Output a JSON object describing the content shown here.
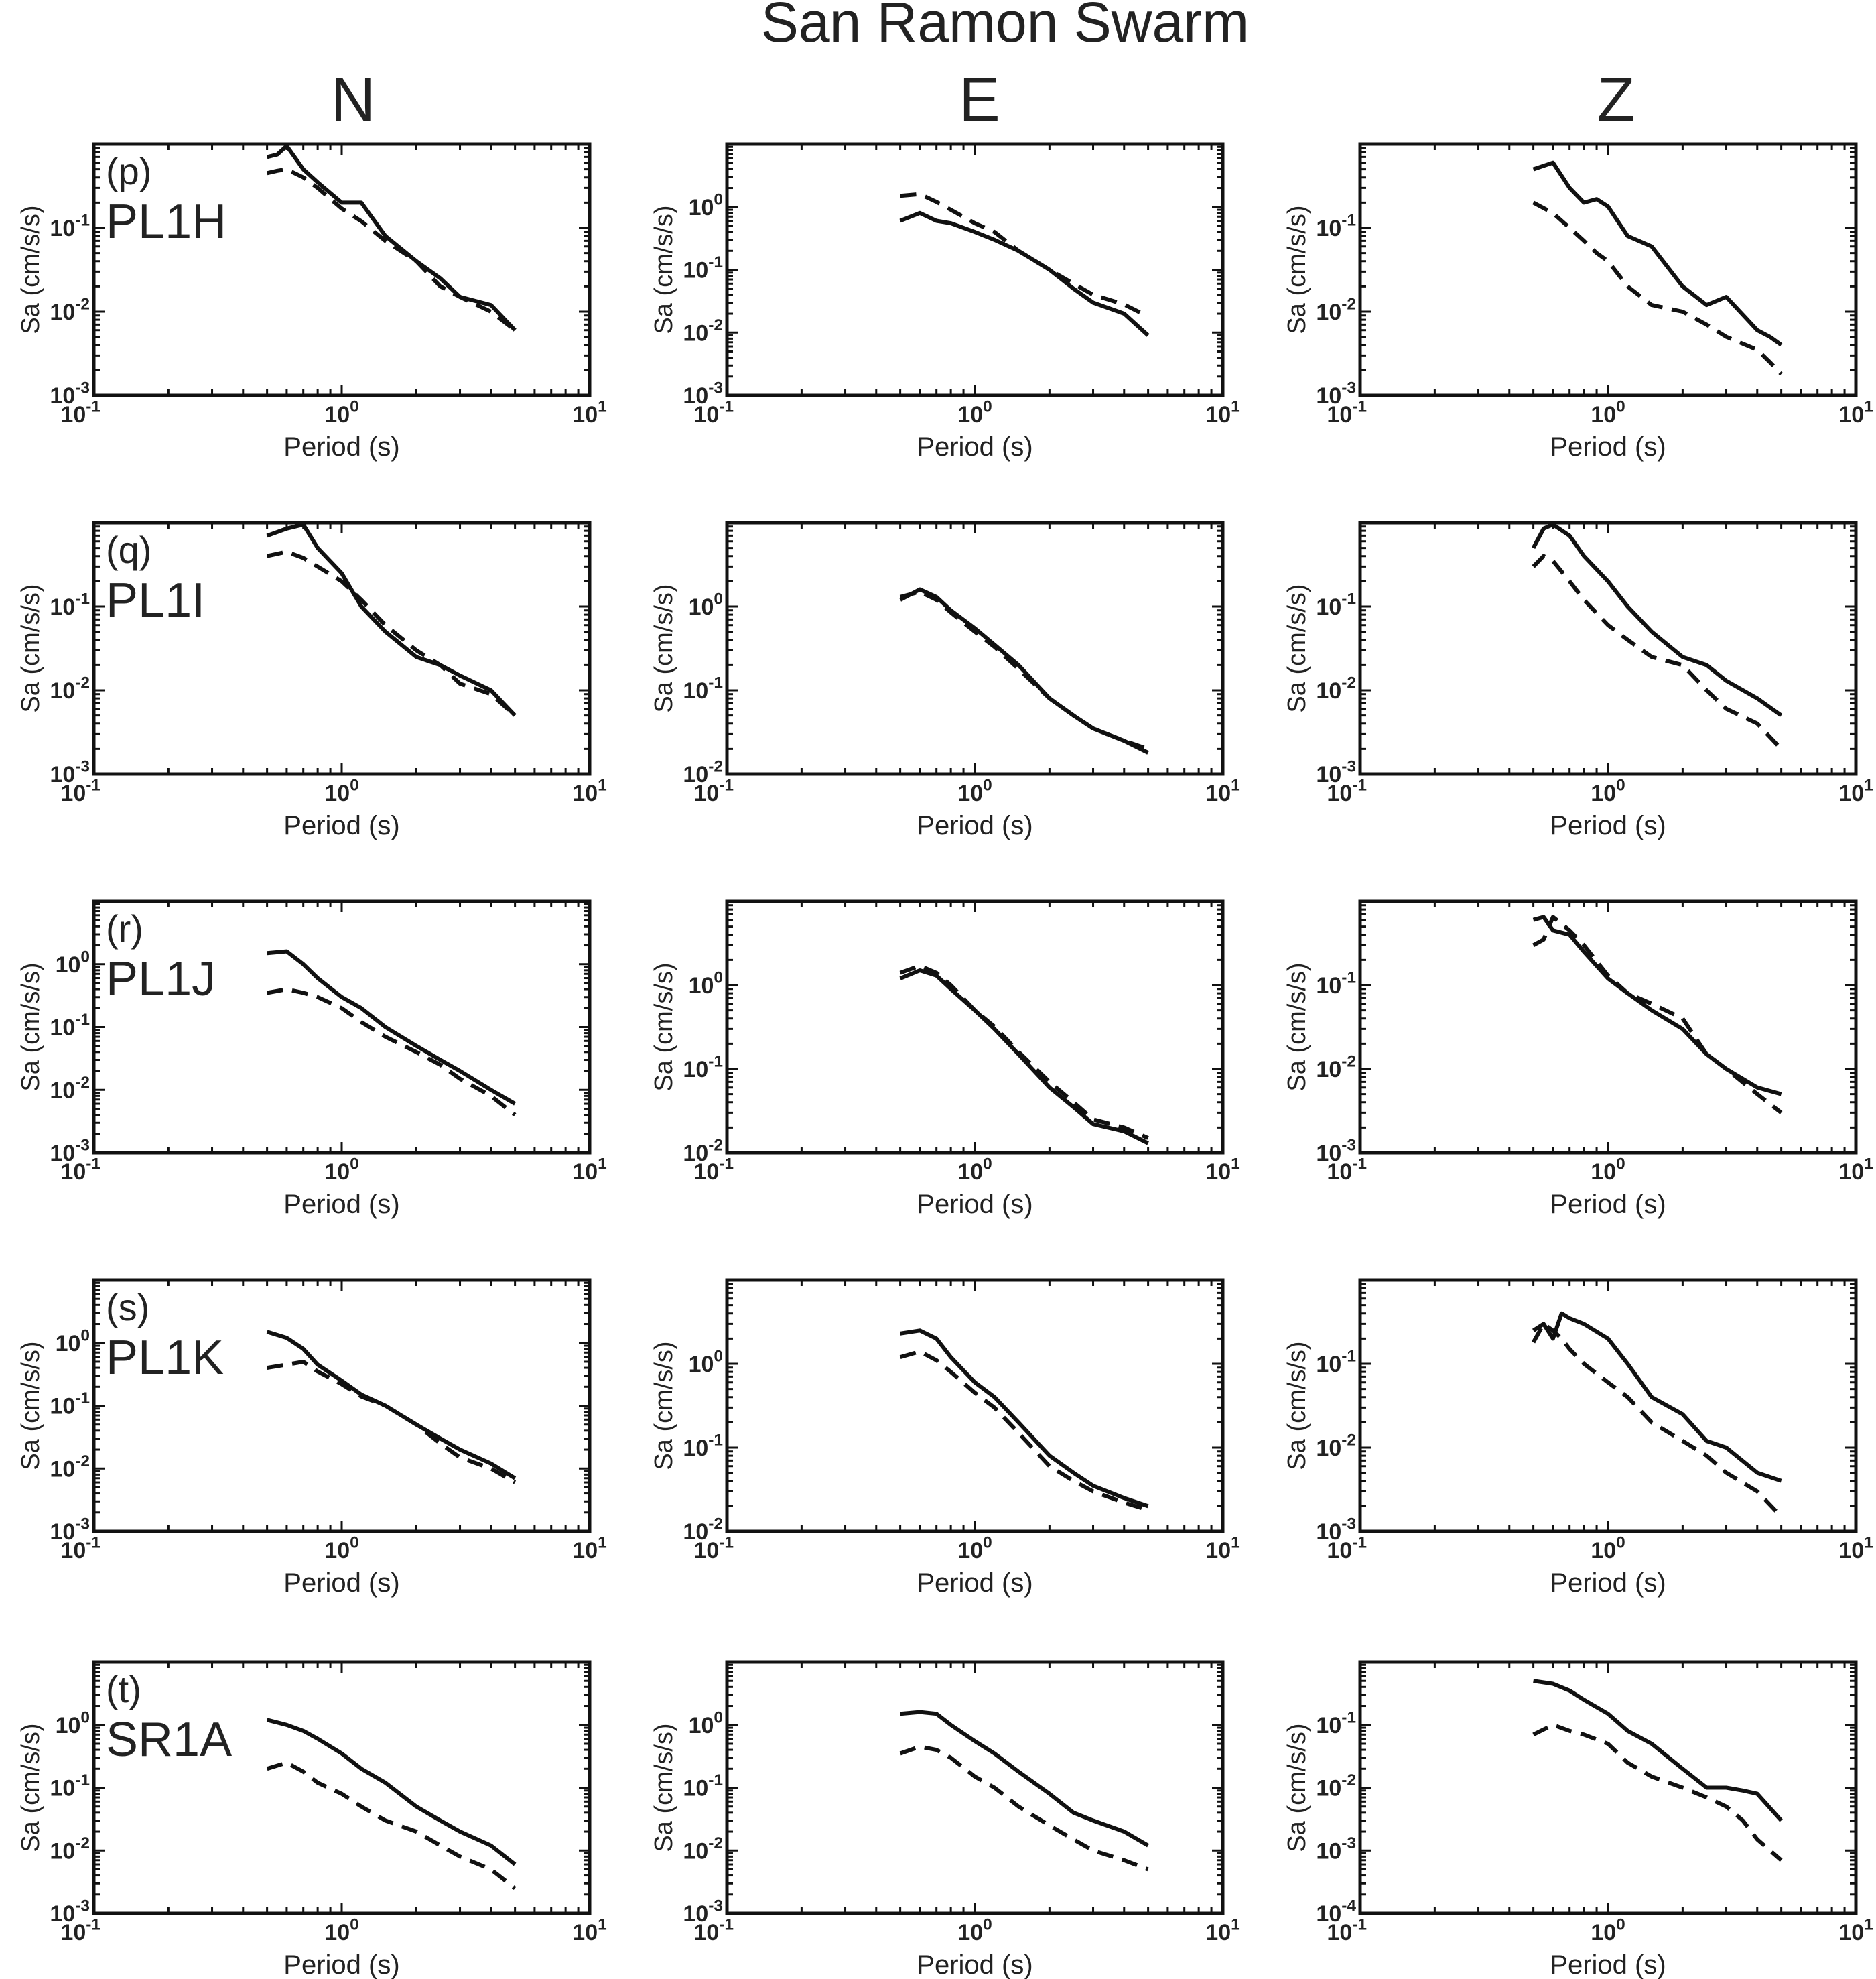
{
  "title": "San Ramon Swarm",
  "columns": [
    "N",
    "E",
    "Z"
  ],
  "axis": {
    "xlabel": "Period (s)",
    "ylabel": "Sa (cm/s/s)",
    "xscale": "log",
    "yscale": "log",
    "xlim": [
      0.1,
      10
    ],
    "x_ticks": [
      {
        "value": 0.1,
        "base": "10",
        "exp": "-1"
      },
      {
        "value": 1,
        "base": "10",
        "exp": "0"
      },
      {
        "value": 10,
        "base": "10",
        "exp": "1"
      }
    ]
  },
  "chart_data": [
    {
      "type": "line",
      "panel": "(p)",
      "station": "PL1H",
      "component": "N",
      "ylim": [
        0.001,
        1
      ],
      "yticks": [
        -3,
        -2,
        -1
      ],
      "x": [
        0.5,
        0.55,
        0.6,
        0.7,
        0.8,
        1.0,
        1.2,
        1.5,
        2.0,
        2.5,
        3.0,
        4.0,
        5.0
      ],
      "series": [
        {
          "style": "solid",
          "values": [
            0.7,
            0.75,
            0.95,
            0.5,
            0.35,
            0.2,
            0.2,
            0.08,
            0.04,
            0.025,
            0.015,
            0.012,
            0.006
          ]
        },
        {
          "style": "dashed",
          "values": [
            0.45,
            0.48,
            0.5,
            0.4,
            0.3,
            0.17,
            0.12,
            0.07,
            0.04,
            0.02,
            0.015,
            0.01,
            0.006
          ]
        }
      ]
    },
    {
      "type": "line",
      "panel": "",
      "station": "",
      "component": "E",
      "ylim": [
        0.001,
        10
      ],
      "yticks": [
        -3,
        -2,
        -1,
        0
      ],
      "x": [
        0.5,
        0.6,
        0.7,
        0.8,
        1.0,
        1.2,
        1.5,
        2.0,
        2.5,
        3.0,
        4.0,
        5.0
      ],
      "series": [
        {
          "style": "solid",
          "values": [
            0.6,
            0.8,
            0.6,
            0.55,
            0.4,
            0.3,
            0.2,
            0.1,
            0.05,
            0.03,
            0.02,
            0.009
          ]
        },
        {
          "style": "dashed",
          "values": [
            1.5,
            1.6,
            1.2,
            0.9,
            0.55,
            0.4,
            0.2,
            0.1,
            0.06,
            0.04,
            0.028,
            0.018
          ]
        }
      ]
    },
    {
      "type": "line",
      "panel": "",
      "station": "",
      "component": "Z",
      "ylim": [
        0.001,
        1
      ],
      "yticks": [
        -3,
        -2,
        -1
      ],
      "x": [
        0.5,
        0.6,
        0.7,
        0.8,
        0.9,
        1.0,
        1.2,
        1.5,
        2.0,
        2.5,
        3.0,
        4.0,
        4.5,
        5.0
      ],
      "series": [
        {
          "style": "solid",
          "values": [
            0.5,
            0.6,
            0.3,
            0.2,
            0.22,
            0.18,
            0.08,
            0.06,
            0.02,
            0.012,
            0.015,
            0.006,
            0.005,
            0.004
          ]
        },
        {
          "style": "dashed",
          "values": [
            0.2,
            0.15,
            0.1,
            0.07,
            0.05,
            0.04,
            0.02,
            0.012,
            0.01,
            0.007,
            0.005,
            0.0035,
            0.0025,
            0.0018
          ]
        }
      ]
    },
    {
      "type": "line",
      "panel": "(q)",
      "station": "PL1I",
      "component": "N",
      "ylim": [
        0.001,
        1
      ],
      "yticks": [
        -3,
        -2,
        -1
      ],
      "x": [
        0.5,
        0.6,
        0.7,
        0.8,
        1.0,
        1.2,
        1.5,
        2.0,
        2.5,
        3.0,
        4.0,
        5.0
      ],
      "series": [
        {
          "style": "solid",
          "values": [
            0.7,
            0.85,
            0.95,
            0.5,
            0.25,
            0.1,
            0.05,
            0.025,
            0.02,
            0.015,
            0.01,
            0.005
          ]
        },
        {
          "style": "dashed",
          "values": [
            0.4,
            0.45,
            0.38,
            0.3,
            0.2,
            0.12,
            0.06,
            0.03,
            0.02,
            0.012,
            0.009,
            0.005
          ]
        }
      ]
    },
    {
      "type": "line",
      "panel": "",
      "station": "",
      "component": "E",
      "ylim": [
        0.01,
        10
      ],
      "yticks": [
        -2,
        -1,
        0
      ],
      "x": [
        0.5,
        0.6,
        0.7,
        0.8,
        1.0,
        1.2,
        1.5,
        2.0,
        2.5,
        3.0,
        4.0,
        5.0
      ],
      "series": [
        {
          "style": "solid",
          "values": [
            1.2,
            1.6,
            1.3,
            0.9,
            0.55,
            0.35,
            0.2,
            0.08,
            0.05,
            0.035,
            0.025,
            0.018
          ]
        },
        {
          "style": "dashed",
          "values": [
            1.3,
            1.5,
            1.2,
            0.85,
            0.5,
            0.33,
            0.18,
            0.08,
            0.05,
            0.035,
            0.025,
            0.02
          ]
        }
      ]
    },
    {
      "type": "line",
      "panel": "",
      "station": "",
      "component": "Z",
      "ylim": [
        0.001,
        1
      ],
      "yticks": [
        -3,
        -2,
        -1
      ],
      "x": [
        0.5,
        0.55,
        0.6,
        0.7,
        0.8,
        1.0,
        1.2,
        1.5,
        2.0,
        2.5,
        3.0,
        4.0,
        5.0
      ],
      "series": [
        {
          "style": "solid",
          "values": [
            0.5,
            0.85,
            0.95,
            0.7,
            0.4,
            0.2,
            0.1,
            0.05,
            0.025,
            0.02,
            0.013,
            0.008,
            0.005
          ]
        },
        {
          "style": "dashed",
          "values": [
            0.3,
            0.4,
            0.35,
            0.2,
            0.12,
            0.06,
            0.04,
            0.025,
            0.02,
            0.01,
            0.006,
            0.004,
            0.002
          ]
        }
      ]
    },
    {
      "type": "line",
      "panel": "(r)",
      "station": "PL1J",
      "component": "N",
      "ylim": [
        0.001,
        10
      ],
      "yticks": [
        -3,
        -2,
        -1,
        0
      ],
      "x": [
        0.5,
        0.6,
        0.7,
        0.8,
        1.0,
        1.2,
        1.5,
        2.0,
        2.5,
        3.0,
        4.0,
        5.0
      ],
      "series": [
        {
          "style": "solid",
          "values": [
            1.5,
            1.6,
            1.0,
            0.6,
            0.3,
            0.2,
            0.1,
            0.05,
            0.03,
            0.02,
            0.01,
            0.006
          ]
        },
        {
          "style": "dashed",
          "values": [
            0.35,
            0.4,
            0.35,
            0.3,
            0.2,
            0.12,
            0.07,
            0.04,
            0.025,
            0.015,
            0.008,
            0.004
          ]
        }
      ]
    },
    {
      "type": "line",
      "panel": "",
      "station": "",
      "component": "E",
      "ylim": [
        0.01,
        10
      ],
      "yticks": [
        -2,
        -1,
        0
      ],
      "x": [
        0.5,
        0.6,
        0.7,
        0.8,
        1.0,
        1.2,
        1.5,
        2.0,
        2.5,
        3.0,
        4.0,
        5.0
      ],
      "series": [
        {
          "style": "solid",
          "values": [
            1.2,
            1.5,
            1.3,
            0.9,
            0.5,
            0.3,
            0.15,
            0.06,
            0.035,
            0.022,
            0.018,
            0.013
          ]
        },
        {
          "style": "dashed",
          "values": [
            1.4,
            1.7,
            1.4,
            1.0,
            0.5,
            0.32,
            0.16,
            0.07,
            0.04,
            0.025,
            0.02,
            0.015
          ]
        }
      ]
    },
    {
      "type": "line",
      "panel": "",
      "station": "",
      "component": "Z",
      "ylim": [
        0.001,
        1
      ],
      "yticks": [
        -3,
        -2,
        -1
      ],
      "x": [
        0.5,
        0.55,
        0.6,
        0.7,
        0.8,
        1.0,
        1.2,
        1.5,
        2.0,
        2.5,
        3.0,
        4.0,
        5.0
      ],
      "series": [
        {
          "style": "solid",
          "values": [
            0.6,
            0.65,
            0.45,
            0.4,
            0.25,
            0.12,
            0.08,
            0.05,
            0.03,
            0.015,
            0.01,
            0.006,
            0.005
          ]
        },
        {
          "style": "dashed",
          "values": [
            0.3,
            0.35,
            0.65,
            0.45,
            0.3,
            0.13,
            0.08,
            0.06,
            0.04,
            0.015,
            0.01,
            0.005,
            0.003
          ]
        }
      ]
    },
    {
      "type": "line",
      "panel": "(s)",
      "station": "PL1K",
      "component": "N",
      "ylim": [
        0.001,
        10
      ],
      "yticks": [
        -3,
        -2,
        -1,
        0
      ],
      "x": [
        0.5,
        0.6,
        0.7,
        0.8,
        1.0,
        1.2,
        1.5,
        2.0,
        2.5,
        3.0,
        4.0,
        5.0
      ],
      "series": [
        {
          "style": "solid",
          "values": [
            1.5,
            1.2,
            0.8,
            0.45,
            0.25,
            0.15,
            0.1,
            0.05,
            0.03,
            0.02,
            0.012,
            0.007
          ]
        },
        {
          "style": "dashed",
          "values": [
            0.4,
            0.45,
            0.5,
            0.35,
            0.22,
            0.14,
            0.1,
            0.05,
            0.025,
            0.015,
            0.01,
            0.006
          ]
        }
      ]
    },
    {
      "type": "line",
      "panel": "",
      "station": "",
      "component": "E",
      "ylim": [
        0.01,
        10
      ],
      "yticks": [
        -2,
        -1,
        0
      ],
      "x": [
        0.5,
        0.6,
        0.7,
        0.8,
        1.0,
        1.2,
        1.5,
        2.0,
        2.5,
        3.0,
        4.0,
        5.0
      ],
      "series": [
        {
          "style": "solid",
          "values": [
            2.3,
            2.5,
            2.0,
            1.2,
            0.6,
            0.4,
            0.2,
            0.08,
            0.05,
            0.035,
            0.025,
            0.02
          ]
        },
        {
          "style": "dashed",
          "values": [
            1.2,
            1.4,
            1.1,
            0.8,
            0.45,
            0.3,
            0.15,
            0.06,
            0.04,
            0.03,
            0.022,
            0.018
          ]
        }
      ]
    },
    {
      "type": "line",
      "panel": "",
      "station": "",
      "component": "Z",
      "ylim": [
        0.001,
        1
      ],
      "yticks": [
        -3,
        -2,
        -1
      ],
      "x": [
        0.5,
        0.55,
        0.6,
        0.65,
        0.7,
        0.8,
        1.0,
        1.2,
        1.5,
        2.0,
        2.5,
        3.0,
        4.0,
        5.0
      ],
      "series": [
        {
          "style": "solid",
          "values": [
            0.25,
            0.3,
            0.2,
            0.4,
            0.35,
            0.3,
            0.2,
            0.1,
            0.04,
            0.025,
            0.012,
            0.01,
            0.005,
            0.004
          ]
        },
        {
          "style": "dashed",
          "values": [
            0.18,
            0.3,
            0.25,
            0.2,
            0.15,
            0.1,
            0.06,
            0.04,
            0.02,
            0.012,
            0.008,
            0.005,
            0.003,
            0.0015
          ]
        }
      ]
    },
    {
      "type": "line",
      "panel": "(t)",
      "station": "SR1A",
      "component": "N",
      "ylim": [
        0.001,
        10
      ],
      "yticks": [
        -3,
        -2,
        -1,
        0
      ],
      "x": [
        0.5,
        0.6,
        0.7,
        0.8,
        1.0,
        1.2,
        1.5,
        2.0,
        2.5,
        3.0,
        4.0,
        5.0
      ],
      "series": [
        {
          "style": "solid",
          "values": [
            1.2,
            1.0,
            0.8,
            0.6,
            0.35,
            0.2,
            0.12,
            0.05,
            0.03,
            0.02,
            0.012,
            0.006
          ]
        },
        {
          "style": "dashed",
          "values": [
            0.2,
            0.25,
            0.18,
            0.12,
            0.08,
            0.05,
            0.03,
            0.02,
            0.012,
            0.008,
            0.005,
            0.0025
          ]
        }
      ]
    },
    {
      "type": "line",
      "panel": "",
      "station": "",
      "component": "E",
      "ylim": [
        0.001,
        10
      ],
      "yticks": [
        -3,
        -2,
        -1,
        0
      ],
      "x": [
        0.5,
        0.6,
        0.7,
        0.8,
        1.0,
        1.2,
        1.5,
        2.0,
        2.5,
        3.0,
        4.0,
        5.0
      ],
      "series": [
        {
          "style": "solid",
          "values": [
            1.5,
            1.6,
            1.5,
            1.0,
            0.55,
            0.35,
            0.18,
            0.08,
            0.04,
            0.03,
            0.02,
            0.012
          ]
        },
        {
          "style": "dashed",
          "values": [
            0.35,
            0.45,
            0.4,
            0.3,
            0.15,
            0.1,
            0.05,
            0.025,
            0.015,
            0.01,
            0.007,
            0.005
          ]
        }
      ]
    },
    {
      "type": "line",
      "panel": "",
      "station": "",
      "component": "Z",
      "ylim": [
        0.0001,
        1
      ],
      "yticks": [
        -4,
        -3,
        -2,
        -1
      ],
      "x": [
        0.5,
        0.6,
        0.7,
        0.8,
        1.0,
        1.2,
        1.5,
        2.0,
        2.5,
        3.0,
        3.5,
        4.0,
        5.0
      ],
      "series": [
        {
          "style": "solid",
          "values": [
            0.5,
            0.45,
            0.35,
            0.25,
            0.15,
            0.08,
            0.05,
            0.02,
            0.01,
            0.01,
            0.009,
            0.008,
            0.003
          ]
        },
        {
          "style": "dashed",
          "values": [
            0.07,
            0.1,
            0.08,
            0.07,
            0.05,
            0.025,
            0.015,
            0.01,
            0.007,
            0.005,
            0.003,
            0.0015,
            0.0007
          ]
        }
      ]
    }
  ]
}
